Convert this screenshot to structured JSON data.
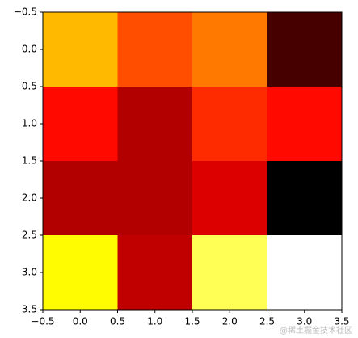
{
  "chart_data": {
    "type": "heatmap",
    "cmap": "hot",
    "z": [
      [
        0.646,
        0.49,
        0.55,
        0.12
      ],
      [
        0.39,
        0.27,
        0.44,
        0.39
      ],
      [
        0.27,
        0.27,
        0.33,
        0.02
      ],
      [
        0.74,
        0.29,
        0.83,
        1.0
      ]
    ],
    "xlim": [
      -0.5,
      3.5
    ],
    "ylim": [
      3.5,
      -0.5
    ],
    "xticks": [
      {
        "value": -0.5,
        "label": "−0.5"
      },
      {
        "value": 0,
        "label": "0.0"
      },
      0.5,
      {
        "value": 1,
        "label": "1.0"
      },
      1.5,
      {
        "value": 2,
        "label": "2.0"
      },
      2.5,
      {
        "value": 3,
        "label": "3.0"
      },
      3.5
    ],
    "yticks": [
      {
        "value": -0.5,
        "label": "−0.5"
      },
      {
        "value": 0,
        "label": "0.0"
      },
      0.5,
      {
        "value": 1,
        "label": "1.0"
      },
      1.5,
      {
        "value": 2,
        "label": "2.0"
      },
      2.5,
      {
        "value": 3,
        "label": "3.0"
      },
      3.5
    ],
    "watermark": "@稀土掘金技术社区"
  }
}
